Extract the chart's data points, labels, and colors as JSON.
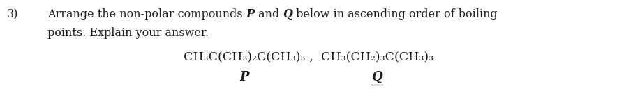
{
  "number": "3)",
  "text_before_P": "Arrange the non-polar compounds ",
  "P_label": "P",
  "text_between": " and ",
  "Q_label": "Q",
  "text_after_Q": " below in ascending order of boiling",
  "line2": "points. Explain your answer.",
  "compound_P": "CH₃C(CH₃)₂C(CH₃)₃",
  "compound_sep": " ,  ",
  "compound_Q": "CH₃(CH₂)₃C(CH₃)₃",
  "label_P": "P",
  "label_Q": "Q",
  "background_color": "#ffffff",
  "text_color": "#231f20",
  "font_size_main": 11.5,
  "font_size_chem": 12.5,
  "font_size_label": 13.0
}
